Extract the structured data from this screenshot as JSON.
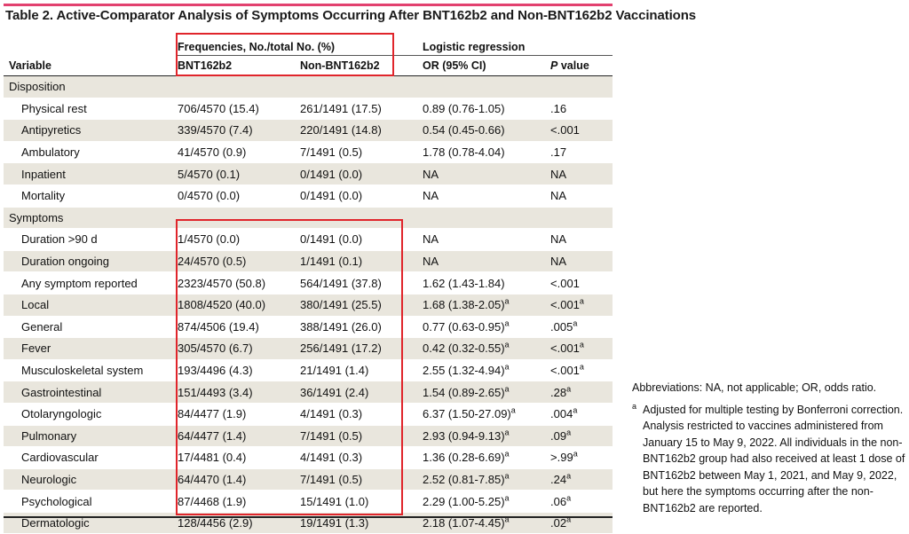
{
  "title": "Table 2. Active-Comparator Analysis of Symptoms Occurring After BNT162b2 and Non-BNT162b2 Vaccinations",
  "header": {
    "group1": "Frequencies, No./total No. (%)",
    "group2": "Logistic regression",
    "col_variable": "Variable",
    "col_bnt": "BNT162b2",
    "col_non": "Non-BNT162b2",
    "col_or": "OR (95% CI)",
    "col_p_italic": "P",
    "col_p_rest": " value"
  },
  "sections": [
    {
      "label": "Disposition",
      "rows": [
        {
          "v": "Physical rest",
          "b": "706/4570 (15.4)",
          "n": "261/1491 (17.5)",
          "or": "0.89 (0.76-1.05)",
          "or_sup": "",
          "p": ".16",
          "p_sup": ""
        },
        {
          "v": "Antipyretics",
          "b": "339/4570 (7.4)",
          "n": "220/1491 (14.8)",
          "or": "0.54 (0.45-0.66)",
          "or_sup": "",
          "p": "<.001",
          "p_sup": ""
        },
        {
          "v": "Ambulatory",
          "b": "41/4570 (0.9)",
          "n": "7/1491 (0.5)",
          "or": "1.78 (0.78-4.04)",
          "or_sup": "",
          "p": ".17",
          "p_sup": ""
        },
        {
          "v": "Inpatient",
          "b": "5/4570 (0.1)",
          "n": "0/1491 (0.0)",
          "or": "NA",
          "or_sup": "",
          "p": "NA",
          "p_sup": ""
        },
        {
          "v": "Mortality",
          "b": "0/4570 (0.0)",
          "n": "0/1491 (0.0)",
          "or": "NA",
          "or_sup": "",
          "p": "NA",
          "p_sup": ""
        }
      ]
    },
    {
      "label": "Symptoms",
      "rows": [
        {
          "v": "Duration >90 d",
          "b": "1/4570 (0.0)",
          "n": "0/1491 (0.0)",
          "or": "NA",
          "or_sup": "",
          "p": "NA",
          "p_sup": ""
        },
        {
          "v": "Duration ongoing",
          "b": "24/4570 (0.5)",
          "n": "1/1491 (0.1)",
          "or": "NA",
          "or_sup": "",
          "p": "NA",
          "p_sup": ""
        },
        {
          "v": "Any symptom reported",
          "b": "2323/4570 (50.8)",
          "n": "564/1491 (37.8)",
          "or": "1.62 (1.43-1.84)",
          "or_sup": "",
          "p": "<.001",
          "p_sup": ""
        },
        {
          "v": "Local",
          "b": "1808/4520 (40.0)",
          "n": "380/1491 (25.5)",
          "or": "1.68 (1.38-2.05)",
          "or_sup": "a",
          "p": "<.001",
          "p_sup": "a"
        },
        {
          "v": "General",
          "b": "874/4506 (19.4)",
          "n": "388/1491 (26.0)",
          "or": "0.77 (0.63-0.95)",
          "or_sup": "a",
          "p": ".005",
          "p_sup": "a"
        },
        {
          "v": "Fever",
          "b": "305/4570 (6.7)",
          "n": "256/1491 (17.2)",
          "or": "0.42 (0.32-0.55)",
          "or_sup": "a",
          "p": "<.001",
          "p_sup": "a"
        },
        {
          "v": "Musculoskeletal system",
          "b": "193/4496 (4.3)",
          "n": "21/1491 (1.4)",
          "or": "2.55 (1.32-4.94)",
          "or_sup": "a",
          "p": "<.001",
          "p_sup": "a"
        },
        {
          "v": "Gastrointestinal",
          "b": "151/4493 (3.4)",
          "n": "36/1491 (2.4)",
          "or": "1.54 (0.89-2.65)",
          "or_sup": "a",
          "p": ".28",
          "p_sup": "a"
        },
        {
          "v": "Otolaryngologic",
          "b": "84/4477 (1.9)",
          "n": "4/1491 (0.3)",
          "or": "6.37 (1.50-27.09)",
          "or_sup": "a",
          "p": ".004",
          "p_sup": "a"
        },
        {
          "v": "Pulmonary",
          "b": "64/4477 (1.4)",
          "n": "7/1491 (0.5)",
          "or": "2.93 (0.94-9.13)",
          "or_sup": "a",
          "p": ".09",
          "p_sup": "a"
        },
        {
          "v": "Cardiovascular",
          "b": "17/4481 (0.4)",
          "n": "4/1491 (0.3)",
          "or": "1.36 (0.28-6.69)",
          "or_sup": "a",
          "p": ">.99",
          "p_sup": "a"
        },
        {
          "v": "Neurologic",
          "b": "64/4470 (1.4)",
          "n": "7/1491 (0.5)",
          "or": "2.52 (0.81-7.85)",
          "or_sup": "a",
          "p": ".24",
          "p_sup": "a"
        },
        {
          "v": "Psychological",
          "b": "87/4468 (1.9)",
          "n": "15/1491 (1.0)",
          "or": "2.29 (1.00-5.25)",
          "or_sup": "a",
          "p": ".06",
          "p_sup": "a"
        },
        {
          "v": "Dermatologic",
          "b": "128/4456 (2.9)",
          "n": "19/1491 (1.3)",
          "or": "2.18 (1.07-4.45)",
          "or_sup": "a",
          "p": ".02",
          "p_sup": "a"
        }
      ]
    }
  ],
  "notes": {
    "abbreviations": "Abbreviations: NA, not applicable; OR, odds ratio.",
    "footnote_mark": "a",
    "footnote_text": "Adjusted for multiple testing by Bonferroni correction. Analysis restricted to vaccines administered from January 15 to May 9, 2022. All individuals in the non-BNT162b2 group had also received at least 1 dose of BNT162b2 between May 1, 2021, and May 9, 2022, but here the symptoms occurring after the non-BNT162b2 are reported."
  },
  "colors": {
    "accent_bar": "#e2416f",
    "highlight_box": "#e0252b",
    "row_shade": "#e9e6dd"
  }
}
